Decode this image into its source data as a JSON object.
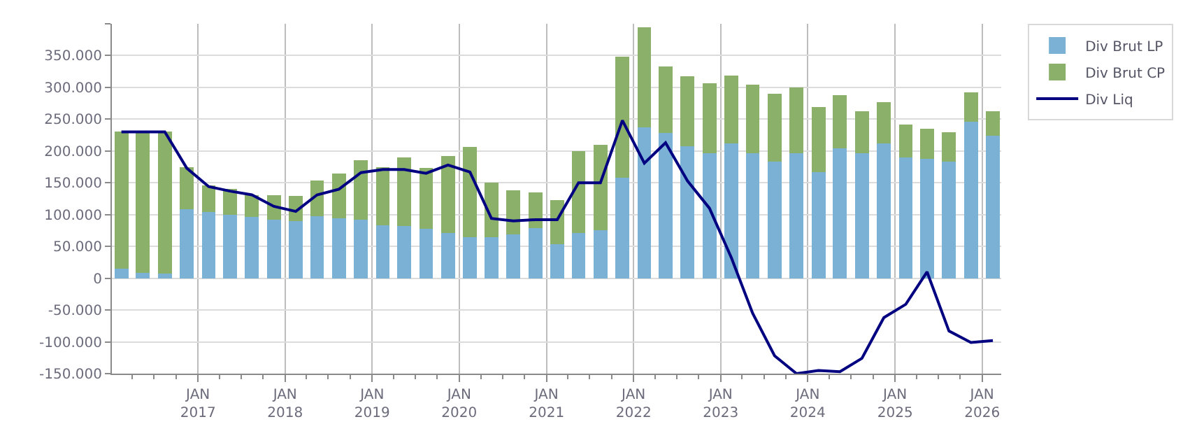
{
  "chart_data": {
    "type": "bar",
    "stacked": true,
    "x": [
      "2016-02-15",
      "2016-05-15",
      "2016-08-15",
      "2016-11-15",
      "2017-02-15",
      "2017-05-15",
      "2017-08-15",
      "2017-11-15",
      "2018-02-15",
      "2018-05-15",
      "2018-08-15",
      "2018-11-15",
      "2019-02-15",
      "2019-05-15",
      "2019-08-15",
      "2019-11-15",
      "2020-02-15",
      "2020-05-15",
      "2020-08-15",
      "2020-11-15",
      "2021-02-15",
      "2021-05-15",
      "2021-08-15",
      "2021-11-15",
      "2022-02-15",
      "2022-05-15",
      "2022-08-15",
      "2022-11-15",
      "2023-02-15",
      "2023-05-15",
      "2023-08-15",
      "2023-11-15",
      "2024-02-15",
      "2024-05-15",
      "2024-08-15",
      "2024-11-15",
      "2025-02-15",
      "2025-05-15",
      "2025-08-15",
      "2025-11-15",
      "2026-02-15"
    ],
    "series": [
      {
        "name": "Div Brut LP",
        "color": "#7ab1d4",
        "values": [
          15000,
          8000,
          7000,
          108000,
          104000,
          100000,
          96000,
          92000,
          90000,
          98000,
          94000,
          92000,
          83000,
          82000,
          78000,
          71000,
          65000,
          65000,
          69000,
          79000,
          53000,
          71000,
          75000,
          158000,
          237000,
          228000,
          207000,
          196000,
          212000,
          196000,
          183000,
          196000,
          167000,
          204000,
          196000,
          212000,
          190000,
          188000,
          183000,
          246000,
          224000
        ]
      },
      {
        "name": "Div Brut CP",
        "color": "#8ab06a",
        "values": [
          216000,
          223000,
          224000,
          67000,
          42000,
          40000,
          35000,
          39000,
          39000,
          56000,
          71000,
          93000,
          92000,
          108000,
          95000,
          121000,
          141000,
          85000,
          69000,
          56000,
          70000,
          129000,
          135000,
          190000,
          157000,
          105000,
          110000,
          110000,
          107000,
          108000,
          107000,
          104000,
          102000,
          84000,
          66000,
          65000,
          52000,
          47000,
          46000,
          46000,
          38000
        ]
      },
      {
        "name": "Div Liq",
        "type": "line",
        "color": "#000080",
        "values": [
          230000,
          230000,
          230000,
          173000,
          144000,
          137000,
          131000,
          113000,
          105000,
          131000,
          140000,
          166000,
          171000,
          171000,
          165000,
          178000,
          167000,
          94000,
          90000,
          92000,
          92000,
          150000,
          150000,
          248000,
          181000,
          213000,
          153000,
          110000,
          32000,
          -55000,
          -122000,
          -150000,
          -145000,
          -147000,
          -126000,
          -62000,
          -41000,
          10000,
          -83000,
          -101000,
          -98000
        ]
      }
    ],
    "xlim": [
      "2016-01-06",
      "2026-03-22"
    ],
    "xticks": [
      {
        "value": "2017-01-01",
        "label": "JAN\n2017"
      },
      {
        "value": "2018-01-01",
        "label": "JAN\n2018"
      },
      {
        "value": "2019-01-01",
        "label": "JAN\n2019"
      },
      {
        "value": "2020-01-01",
        "label": "JAN\n2020"
      },
      {
        "value": "2021-01-01",
        "label": "JAN\n2021"
      },
      {
        "value": "2022-01-01",
        "label": "JAN\n2022"
      },
      {
        "value": "2023-01-01",
        "label": "JAN\n2023"
      },
      {
        "value": "2024-01-01",
        "label": "JAN\n2024"
      },
      {
        "value": "2025-01-01",
        "label": "JAN\n2025"
      },
      {
        "value": "2026-01-01",
        "label": "JAN\n2026"
      }
    ],
    "ylim": [
      -150000,
      400000
    ],
    "yticks": [
      {
        "value": -150000,
        "label": "-150.000"
      },
      {
        "value": -100000,
        "label": "-100.000"
      },
      {
        "value": -50000,
        "label": "-50.000"
      },
      {
        "value": 0,
        "label": "0"
      },
      {
        "value": 50000,
        "label": "50.000"
      },
      {
        "value": 100000,
        "label": "100.000"
      },
      {
        "value": 150000,
        "label": "150.000"
      },
      {
        "value": 200000,
        "label": "200.000"
      },
      {
        "value": 250000,
        "label": "250.000"
      },
      {
        "value": 300000,
        "label": "300.000"
      },
      {
        "value": 350000,
        "label": "350.000"
      },
      {
        "value": 400000,
        "label": null
      }
    ],
    "grid": true,
    "legend": "top right"
  }
}
